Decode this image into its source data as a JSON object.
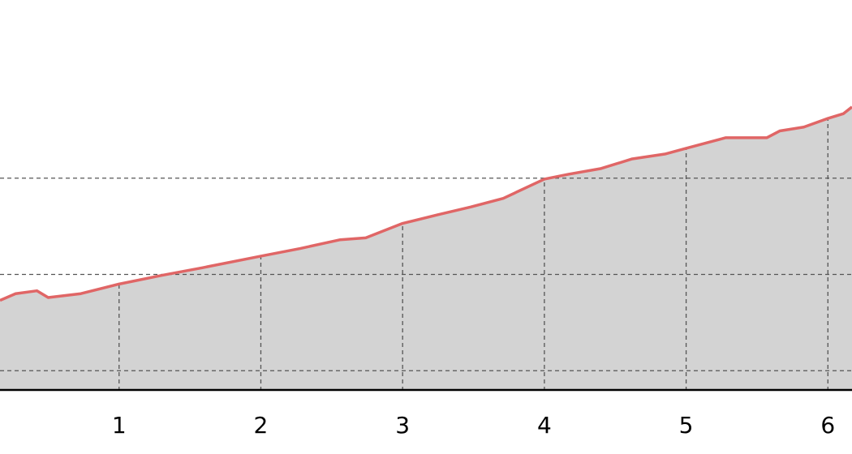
{
  "chart_data": {
    "type": "area",
    "x": [
      0.16,
      0.27,
      0.42,
      0.5,
      0.73,
      1.0,
      1.3,
      1.59,
      2.0,
      2.28,
      2.56,
      2.74,
      3.0,
      3.25,
      3.48,
      3.71,
      4.0,
      4.17,
      4.4,
      4.62,
      4.85,
      5.0,
      5.28,
      5.57,
      5.66,
      5.83,
      6.0,
      6.11,
      6.17
    ],
    "values": [
      1.73,
      1.8,
      1.83,
      1.76,
      1.8,
      1.9,
      1.99,
      2.07,
      2.19,
      2.27,
      2.36,
      2.38,
      2.53,
      2.62,
      2.7,
      2.79,
      2.99,
      3.04,
      3.1,
      3.2,
      3.25,
      3.31,
      3.42,
      3.42,
      3.49,
      3.53,
      3.62,
      3.67,
      3.74
    ],
    "color": "#e06666",
    "fill_color": "#d3d3d3",
    "xlim": [
      0.16,
      6.17
    ],
    "xticks": [
      1,
      2,
      3,
      4,
      5,
      6
    ],
    "ylim": [
      0.8,
      4.85
    ],
    "yticks": [
      1,
      2,
      3
    ],
    "grid": true
  }
}
